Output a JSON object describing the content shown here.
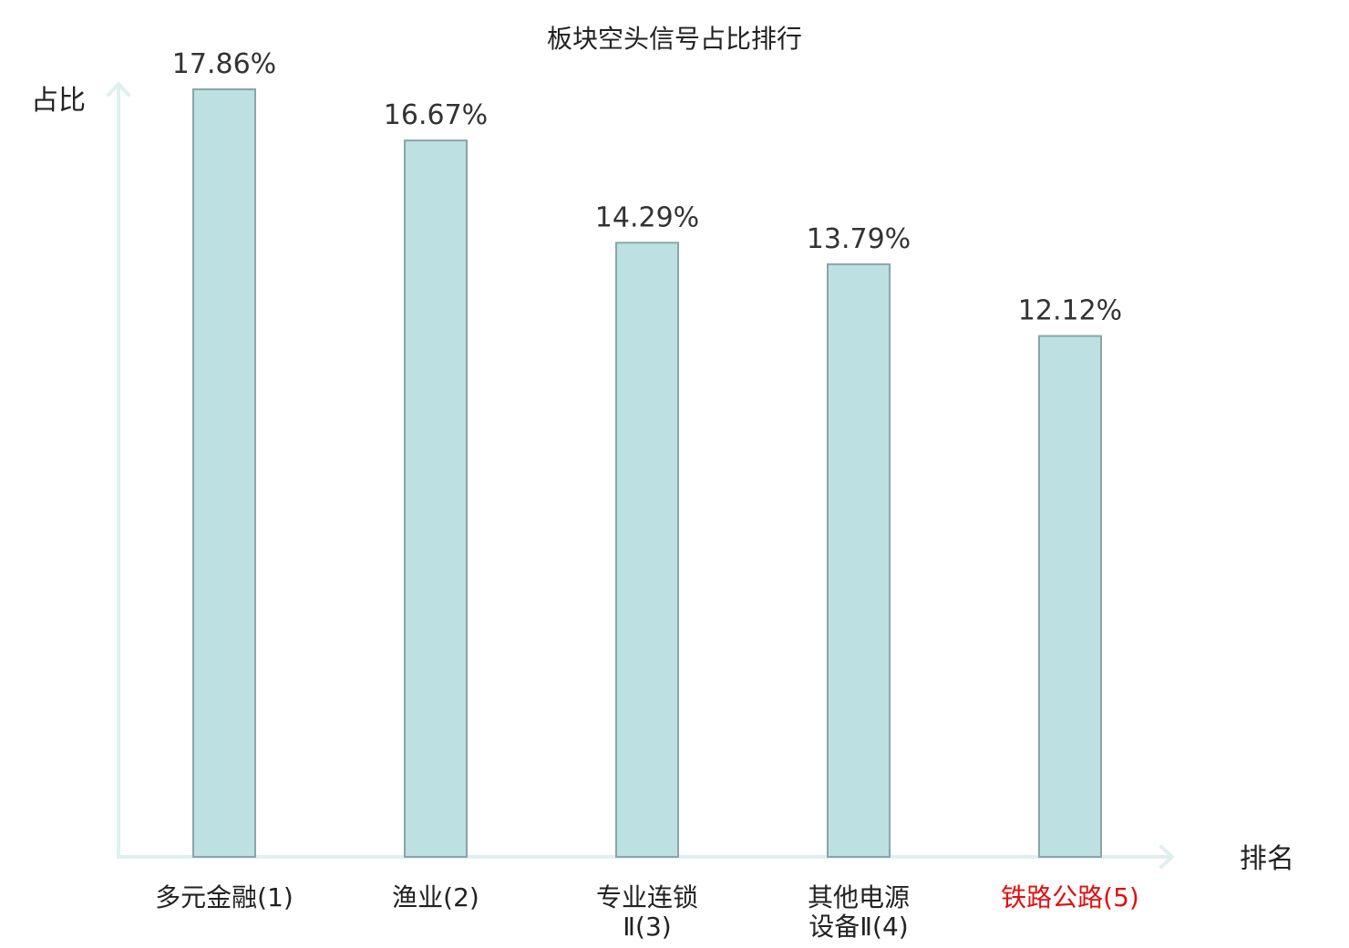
{
  "chart_data": {
    "type": "bar",
    "title": "板块空头信号占比排行",
    "xlabel": "排名",
    "ylabel": "占比",
    "categories": [
      {
        "lines": [
          "多元金融(1)"
        ],
        "highlight": false
      },
      {
        "lines": [
          "渔业(2)"
        ],
        "highlight": false
      },
      {
        "lines": [
          "专业连锁",
          "Ⅱ(3)"
        ],
        "highlight": false
      },
      {
        "lines": [
          "其他电源",
          "设备Ⅱ(4)"
        ],
        "highlight": false
      },
      {
        "lines": [
          "铁路公路(5)"
        ],
        "highlight": true
      }
    ],
    "values": [
      17.86,
      16.67,
      14.29,
      13.79,
      12.12
    ],
    "value_labels": [
      "17.86%",
      "16.67%",
      "14.29%",
      "13.79%",
      "12.12%"
    ],
    "ylim": [
      0,
      17.86
    ],
    "grid": false,
    "colors": {
      "bar_fill": "#bde0e3",
      "bar_stroke": "#8aa5a7",
      "axis": "#dff0ee",
      "highlight_label": "#e01010"
    }
  }
}
